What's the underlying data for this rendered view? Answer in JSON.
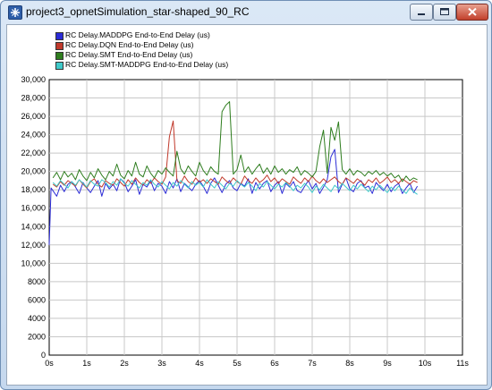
{
  "window": {
    "title": "project3_opnetSimulation_star-shaped_90_RC",
    "icon": "opnet-app-icon",
    "controls": [
      "minimize-icon",
      "maximize-icon",
      "close-icon"
    ]
  },
  "chart_data": {
    "type": "line",
    "title": "",
    "xlabel": "",
    "ylabel": "",
    "xlim": [
      0,
      11
    ],
    "ylim": [
      0,
      30000
    ],
    "x_ticks": [
      "0s",
      "1s",
      "2s",
      "3s",
      "4s",
      "5s",
      "6s",
      "7s",
      "8s",
      "9s",
      "10s",
      "11s"
    ],
    "y_ticks": [
      "0",
      "2000",
      "4000",
      "6000",
      "8000",
      "10,000",
      "12,000",
      "14,000",
      "16,000",
      "18,000",
      "20,000",
      "22,000",
      "24,000",
      "26,000",
      "28,000",
      "30,000"
    ],
    "grid": true,
    "legend_position": "top-left",
    "series": [
      {
        "name": "RC Delay.MADDPG End-to-End Delay (us)",
        "color": "#2b2bd6",
        "x": [
          0.0,
          0.05,
          0.1,
          0.2,
          0.3,
          0.4,
          0.5,
          0.6,
          0.7,
          0.8,
          0.9,
          1.0,
          1.1,
          1.2,
          1.3,
          1.4,
          1.5,
          1.6,
          1.7,
          1.8,
          1.9,
          2.0,
          2.1,
          2.2,
          2.3,
          2.4,
          2.5,
          2.6,
          2.7,
          2.8,
          2.9,
          3.0,
          3.1,
          3.2,
          3.3,
          3.4,
          3.5,
          3.6,
          3.7,
          3.8,
          3.9,
          4.0,
          4.1,
          4.2,
          4.3,
          4.4,
          4.5,
          4.6,
          4.7,
          4.8,
          4.9,
          5.0,
          5.1,
          5.2,
          5.3,
          5.4,
          5.5,
          5.6,
          5.7,
          5.8,
          5.9,
          6.0,
          6.1,
          6.2,
          6.3,
          6.4,
          6.5,
          6.6,
          6.7,
          6.8,
          6.9,
          7.0,
          7.1,
          7.2,
          7.3,
          7.4,
          7.5,
          7.6,
          7.7,
          7.8,
          7.9,
          8.0,
          8.1,
          8.2,
          8.3,
          8.4,
          8.5,
          8.6,
          8.7,
          8.8,
          8.9,
          9.0,
          9.1,
          9.2,
          9.3,
          9.4,
          9.5,
          9.6,
          9.7,
          9.8
        ],
        "y": [
          12000,
          18200,
          17900,
          17300,
          18500,
          17800,
          18600,
          18900,
          18300,
          17600,
          18800,
          18200,
          17700,
          18400,
          19000,
          17300,
          18700,
          18100,
          18600,
          17900,
          19200,
          18800,
          17800,
          18400,
          19100,
          17500,
          18600,
          18300,
          19000,
          17900,
          18700,
          18400,
          17600,
          18900,
          18200,
          19200,
          17800,
          18700,
          18300,
          17900,
          18600,
          19000,
          18400,
          17600,
          18700,
          19300,
          18500,
          17700,
          18600,
          19000,
          18200,
          17900,
          18700,
          18400,
          19200,
          17600,
          18800,
          18100,
          18700,
          19000,
          17800,
          18500,
          18900,
          17600,
          18700,
          18300,
          18900,
          17900,
          17700,
          18400,
          19000,
          18100,
          18700,
          17600,
          18300,
          19100,
          21600,
          22400,
          17700,
          18600,
          19300,
          18100,
          17800,
          18700,
          19000,
          18200,
          18400,
          17600,
          18800,
          18300,
          17900,
          18600,
          17800,
          18400,
          18700,
          17600,
          18200,
          18700,
          17700,
          18400
        ]
      },
      {
        "name": "RC Delay.DQN End-to-End Delay (us)",
        "color": "#c0392b",
        "x": [
          0.1,
          0.2,
          0.3,
          0.4,
          0.5,
          0.6,
          0.7,
          0.8,
          0.9,
          1.0,
          1.1,
          1.2,
          1.3,
          1.4,
          1.5,
          1.6,
          1.7,
          1.8,
          1.9,
          2.0,
          2.1,
          2.2,
          2.3,
          2.4,
          2.5,
          2.6,
          2.7,
          2.8,
          2.9,
          3.0,
          3.1,
          3.2,
          3.3,
          3.4,
          3.5,
          3.6,
          3.7,
          3.8,
          3.9,
          4.0,
          4.1,
          4.2,
          4.3,
          4.4,
          4.5,
          4.6,
          4.7,
          4.8,
          4.9,
          5.0,
          5.1,
          5.2,
          5.3,
          5.4,
          5.5,
          5.6,
          5.7,
          5.8,
          5.9,
          6.0,
          6.1,
          6.2,
          6.3,
          6.4,
          6.5,
          6.6,
          6.7,
          6.8,
          6.9,
          7.0,
          7.1,
          7.2,
          7.3,
          7.4,
          7.5,
          7.6,
          7.7,
          7.8,
          7.9,
          8.0,
          8.1,
          8.2,
          8.3,
          8.4,
          8.5,
          8.6,
          8.7,
          8.8,
          8.9,
          9.0,
          9.1,
          9.2,
          9.3,
          9.4,
          9.5,
          9.6,
          9.7,
          9.8
        ],
        "y": [
          18600,
          18300,
          18900,
          18500,
          19000,
          18700,
          18400,
          19100,
          18600,
          18200,
          18900,
          19200,
          18600,
          18300,
          19000,
          18700,
          18500,
          19200,
          18800,
          18400,
          19100,
          18600,
          19300,
          18800,
          18500,
          19100,
          18700,
          19300,
          18900,
          18600,
          19400,
          23800,
          25500,
          19000,
          18700,
          19500,
          18900,
          18600,
          19300,
          18800,
          19100,
          18700,
          19200,
          18900,
          18600,
          19400,
          19000,
          18700,
          19300,
          18900,
          18600,
          19500,
          19000,
          18700,
          19300,
          18800,
          19100,
          19600,
          18900,
          19300,
          18700,
          19200,
          18900,
          18600,
          19400,
          19000,
          18700,
          19300,
          18900,
          19500,
          19000,
          18700,
          19200,
          18800,
          19100,
          19400,
          18900,
          18600,
          19300,
          19000,
          18700,
          19200,
          18900,
          18500,
          19100,
          18800,
          19300,
          18700,
          19000,
          19400,
          18800,
          19100,
          18700,
          19200,
          18900,
          18600,
          19000,
          18800
        ]
      },
      {
        "name": "RC Delay.SMT End-to-End Delay (us)",
        "color": "#2e7d1e",
        "x": [
          0.1,
          0.2,
          0.3,
          0.4,
          0.5,
          0.6,
          0.7,
          0.8,
          0.9,
          1.0,
          1.1,
          1.2,
          1.3,
          1.4,
          1.5,
          1.6,
          1.7,
          1.8,
          1.9,
          2.0,
          2.1,
          2.2,
          2.3,
          2.4,
          2.5,
          2.6,
          2.7,
          2.8,
          2.9,
          3.0,
          3.1,
          3.2,
          3.3,
          3.4,
          3.5,
          3.6,
          3.7,
          3.8,
          3.9,
          4.0,
          4.1,
          4.2,
          4.3,
          4.4,
          4.5,
          4.6,
          4.7,
          4.8,
          4.9,
          5.0,
          5.1,
          5.2,
          5.3,
          5.4,
          5.5,
          5.6,
          5.7,
          5.8,
          5.9,
          6.0,
          6.1,
          6.2,
          6.3,
          6.4,
          6.5,
          6.6,
          6.7,
          6.8,
          6.9,
          7.0,
          7.1,
          7.2,
          7.3,
          7.4,
          7.5,
          7.6,
          7.7,
          7.8,
          7.9,
          8.0,
          8.1,
          8.2,
          8.3,
          8.4,
          8.5,
          8.6,
          8.7,
          8.8,
          8.9,
          9.0,
          9.1,
          9.2,
          9.3,
          9.4,
          9.5,
          9.6,
          9.7,
          9.8
        ],
        "y": [
          19300,
          19900,
          19100,
          20000,
          19400,
          19800,
          19100,
          20200,
          19500,
          19000,
          19900,
          19300,
          20300,
          19600,
          19100,
          20000,
          19500,
          20800,
          19600,
          19200,
          20100,
          19500,
          21000,
          19700,
          19400,
          20600,
          19800,
          19300,
          20100,
          19700,
          20400,
          19900,
          19500,
          22200,
          20300,
          19700,
          20600,
          20000,
          19500,
          21000,
          20100,
          19600,
          20500,
          20000,
          19700,
          26500,
          27200,
          27600,
          19700,
          20200,
          21800,
          19900,
          20500,
          19700,
          20300,
          20800,
          19800,
          20400,
          19700,
          20600,
          19900,
          20300,
          19700,
          20200,
          19900,
          20500,
          19600,
          20100,
          19800,
          19400,
          20000,
          22700,
          24500,
          19800,
          24800,
          23400,
          25400,
          20200,
          19700,
          20300,
          19600,
          20100,
          19900,
          19500,
          20000,
          19700,
          20100,
          19600,
          19900,
          19500,
          19800,
          19300,
          19600,
          18900,
          19500,
          19000,
          19300,
          19100
        ]
      },
      {
        "name": "RC Delay.SMT-MADDPG End-to-End Delay (us)",
        "color": "#3fc9c9",
        "x": [
          0.1,
          0.2,
          0.3,
          0.4,
          0.5,
          0.6,
          0.7,
          0.8,
          0.9,
          1.0,
          1.1,
          1.2,
          1.3,
          1.4,
          1.5,
          1.6,
          1.7,
          1.8,
          1.9,
          2.0,
          2.1,
          2.2,
          2.3,
          2.4,
          2.5,
          2.6,
          2.7,
          2.8,
          2.9,
          3.0,
          3.1,
          3.2,
          3.3,
          3.4,
          3.5,
          3.6,
          3.7,
          3.8,
          3.9,
          4.0,
          4.1,
          4.2,
          4.3,
          4.4,
          4.5,
          4.6,
          4.7,
          4.8,
          4.9,
          5.0,
          5.1,
          5.2,
          5.3,
          5.4,
          5.5,
          5.6,
          5.7,
          5.8,
          5.9,
          6.0,
          6.1,
          6.2,
          6.3,
          6.4,
          6.5,
          6.6,
          6.7,
          6.8,
          6.9,
          7.0,
          7.1,
          7.2,
          7.3,
          7.4,
          7.5,
          7.6,
          7.7,
          7.8,
          7.9,
          8.0,
          8.1,
          8.2,
          8.3,
          8.4,
          8.5,
          8.6,
          8.7,
          8.8,
          8.9,
          9.0,
          9.1,
          9.2,
          9.3,
          9.4,
          9.5,
          9.6,
          9.7,
          9.8
        ],
        "y": [
          18800,
          18400,
          19000,
          18600,
          18200,
          18900,
          18500,
          19100,
          18700,
          18300,
          19000,
          18600,
          18400,
          19100,
          18800,
          18300,
          18900,
          18500,
          19200,
          18700,
          18400,
          19000,
          18600,
          18200,
          18800,
          18500,
          19100,
          18600,
          18300,
          18900,
          18500,
          18100,
          18800,
          18400,
          19000,
          18600,
          18200,
          18900,
          18500,
          18800,
          18300,
          19100,
          18600,
          18200,
          18900,
          18500,
          18100,
          18700,
          18400,
          19000,
          18600,
          18300,
          18800,
          18400,
          17900,
          18700,
          18300,
          18900,
          18500,
          18100,
          18600,
          18300,
          18800,
          18400,
          17900,
          18500,
          18200,
          18700,
          18300,
          17700,
          18400,
          18000,
          18600,
          18200,
          17800,
          18500,
          18100,
          18700,
          18300,
          17900,
          18500,
          18100,
          18600,
          18200,
          17800,
          18400,
          18000,
          18500,
          18100,
          17700,
          18300,
          17900,
          18400,
          18000,
          17600,
          18200,
          17800,
          17500
        ]
      }
    ]
  }
}
